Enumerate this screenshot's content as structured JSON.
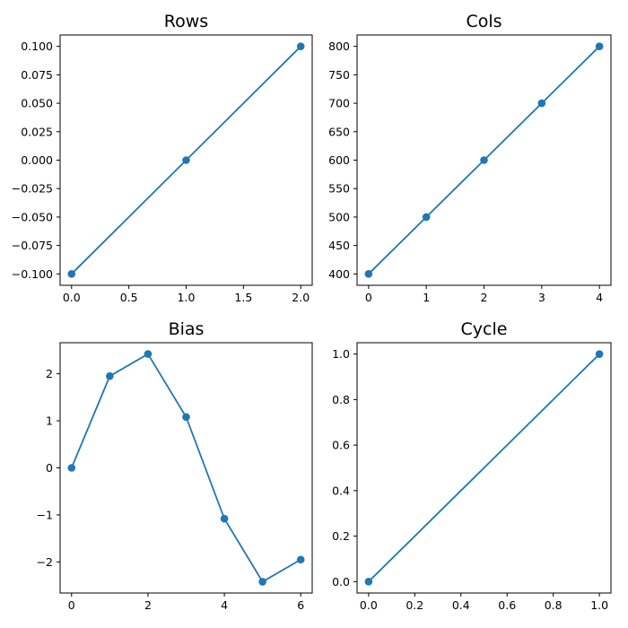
{
  "chart_data": [
    {
      "type": "line",
      "title": "Rows",
      "x": [
        0,
        1,
        2
      ],
      "y": [
        -0.1,
        0.0,
        0.1
      ],
      "xlim": [
        -0.1,
        2.1
      ],
      "ylim": [
        -0.11,
        0.11
      ],
      "xticks": [
        "0.0",
        "0.5",
        "1.0",
        "1.5",
        "2.0"
      ],
      "xtick_values": [
        0,
        0.5,
        1,
        1.5,
        2
      ],
      "yticks": [
        "−0.100",
        "−0.075",
        "−0.050",
        "−0.025",
        "0.000",
        "0.025",
        "0.050",
        "0.075",
        "0.100"
      ],
      "ytick_values": [
        -0.1,
        -0.075,
        -0.05,
        -0.025,
        0,
        0.025,
        0.05,
        0.075,
        0.1
      ],
      "color": "#1f77b4",
      "grid": false
    },
    {
      "type": "line",
      "title": "Cols",
      "x": [
        0,
        1,
        2,
        3,
        4
      ],
      "y": [
        400,
        500,
        600,
        700,
        800
      ],
      "xlim": [
        -0.2,
        4.2
      ],
      "ylim": [
        380,
        820
      ],
      "xticks": [
        "0",
        "1",
        "2",
        "3",
        "4"
      ],
      "xtick_values": [
        0,
        1,
        2,
        3,
        4
      ],
      "yticks": [
        "400",
        "450",
        "500",
        "550",
        "600",
        "650",
        "700",
        "750",
        "800"
      ],
      "ytick_values": [
        400,
        450,
        500,
        550,
        600,
        650,
        700,
        750,
        800
      ],
      "color": "#1f77b4",
      "grid": false
    },
    {
      "type": "line",
      "title": "Bias",
      "x": [
        0,
        1,
        2,
        3,
        4,
        5,
        6
      ],
      "y": [
        0.0,
        1.95,
        2.42,
        1.08,
        -1.08,
        -2.42,
        -1.95
      ],
      "xlim": [
        -0.3,
        6.3
      ],
      "ylim": [
        -2.66,
        2.66
      ],
      "xticks": [
        "0",
        "2",
        "4",
        "6"
      ],
      "xtick_values": [
        0,
        2,
        4,
        6
      ],
      "yticks": [
        "−2",
        "−1",
        "0",
        "1",
        "2"
      ],
      "ytick_values": [
        -2,
        -1,
        0,
        1,
        2
      ],
      "color": "#1f77b4",
      "grid": false
    },
    {
      "type": "line",
      "title": "Cycle",
      "x": [
        0,
        1
      ],
      "y": [
        0,
        1
      ],
      "xlim": [
        -0.05,
        1.05
      ],
      "ylim": [
        -0.05,
        1.05
      ],
      "xticks": [
        "0.0",
        "0.2",
        "0.4",
        "0.6",
        "0.8",
        "1.0"
      ],
      "xtick_values": [
        0,
        0.2,
        0.4,
        0.6,
        0.8,
        1.0
      ],
      "yticks": [
        "0.0",
        "0.2",
        "0.4",
        "0.6",
        "0.8",
        "1.0"
      ],
      "ytick_values": [
        0,
        0.2,
        0.4,
        0.6,
        0.8,
        1.0
      ],
      "color": "#1f77b4",
      "grid": false
    }
  ]
}
